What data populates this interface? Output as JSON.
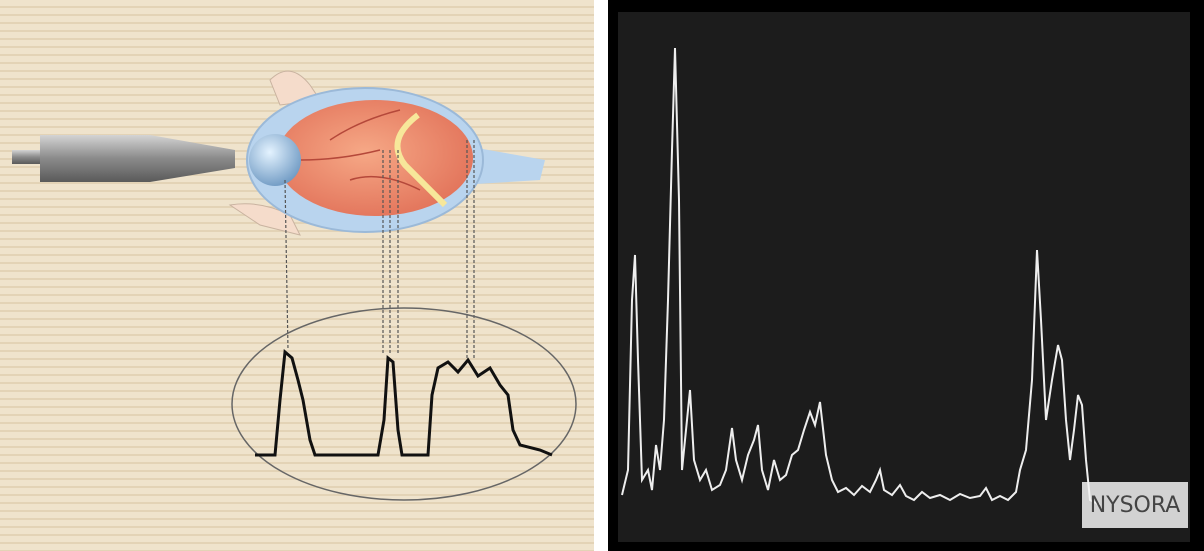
{
  "watermark": "NYSORA"
}
